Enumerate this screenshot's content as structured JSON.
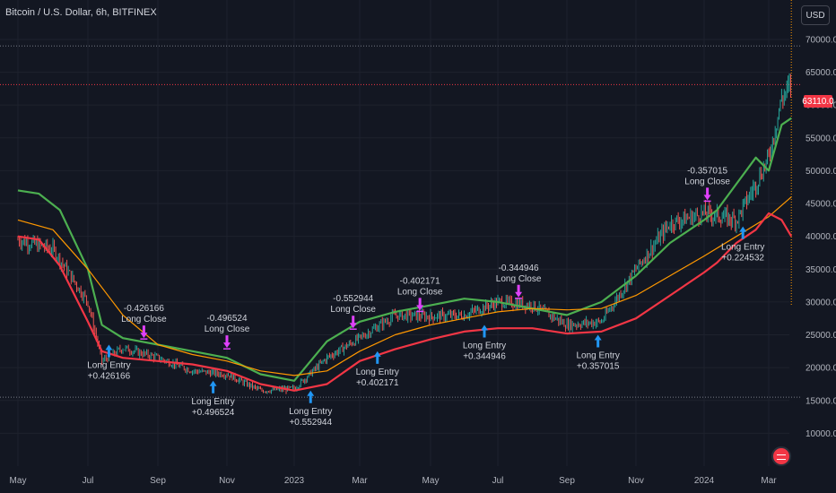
{
  "header": {
    "title": "Bitcoin / U.S. Dollar, 6h, BITFINEX",
    "currency_button": "USD"
  },
  "price_tag": "63110.0",
  "colors": {
    "background": "#131722",
    "grid": "#1e222d",
    "upper_band": "#4caf50",
    "lower_band": "#f23645",
    "ma": "#ff9800",
    "entry_arrow": "#2196f3",
    "close_arrow": "#e040fb",
    "candle_up": "#26a69a",
    "candle_down": "#ef5350"
  },
  "chart_data": {
    "type": "line",
    "x_ticks": [
      "May",
      "Jul",
      "Sep",
      "Nov",
      "2023",
      "Mar",
      "May",
      "Jul",
      "Sep",
      "Nov",
      "2024",
      "Mar"
    ],
    "y_ticks": [
      10000,
      15000,
      20000,
      25000,
      30000,
      35000,
      40000,
      45000,
      50000,
      55000,
      60000,
      65000,
      70000
    ],
    "y_tick_labels": [
      "10000.0",
      "15000.0",
      "20000.0",
      "25000.0",
      "30000.0",
      "35000.0",
      "40000.0",
      "45000.0",
      "50000.0",
      "55000.0",
      "60000.0",
      "65000.0",
      "70000.0"
    ],
    "ylim": [
      5000,
      76000
    ],
    "series": [
      {
        "color": "#4caf50",
        "x": [
          0,
          0.3,
          0.6,
          1,
          1.2,
          1.5,
          2,
          2.5,
          3,
          3.5,
          4,
          4.5,
          5,
          5.5,
          6,
          6.5,
          7,
          7.5,
          8,
          8.5,
          9,
          9.5,
          10,
          10.2,
          10.5,
          10.8,
          11,
          11.2,
          11.35
        ],
        "values": [
          47000,
          46500,
          44000,
          35000,
          26500,
          24500,
          23500,
          22500,
          21500,
          19000,
          18000,
          24000,
          27000,
          28500,
          29500,
          30500,
          30000,
          29000,
          28000,
          30000,
          34000,
          39000,
          42500,
          44000,
          48000,
          52000,
          50000,
          57000,
          58000
        ]
      },
      {
        "color": "#ff9800",
        "x": [
          0,
          0.5,
          1,
          1.5,
          2,
          2.5,
          3,
          3.5,
          4,
          4.5,
          5,
          5.5,
          6,
          6.5,
          7,
          7.5,
          8,
          8.5,
          9,
          9.5,
          10,
          10.5,
          11,
          11.35
        ],
        "values": [
          42500,
          41000,
          35000,
          28000,
          23500,
          22000,
          21000,
          19500,
          18800,
          19500,
          22500,
          25000,
          26500,
          27500,
          28500,
          29000,
          28800,
          29000,
          31000,
          34000,
          37000,
          40000,
          43000,
          46000
        ]
      },
      {
        "color": "#f23645",
        "x": [
          0,
          0.3,
          0.6,
          1,
          1.2,
          1.5,
          2,
          2.5,
          3,
          3.5,
          4,
          4.5,
          5,
          5.5,
          6,
          6.5,
          7,
          7.5,
          8,
          8.5,
          9,
          9.5,
          10,
          10.2,
          10.5,
          10.8,
          11,
          11.2,
          11.35
        ],
        "values": [
          40000,
          39500,
          35500,
          27000,
          22500,
          21500,
          21000,
          20500,
          19500,
          17500,
          16500,
          17500,
          21000,
          22800,
          24300,
          25500,
          26000,
          26000,
          25200,
          25500,
          27500,
          31000,
          34500,
          36000,
          39000,
          41000,
          43500,
          42500,
          40000
        ]
      }
    ],
    "price_candles": {
      "x": [
        0,
        0.5,
        1,
        1.2,
        1.5,
        2,
        2.5,
        3,
        3.5,
        4,
        4.5,
        5,
        5.5,
        6,
        6.5,
        7,
        7.5,
        8,
        8.5,
        9,
        9.5,
        10,
        10.5,
        10.8,
        11,
        11.2,
        11.35
      ],
      "values": [
        39500,
        38000,
        30000,
        21000,
        23000,
        21500,
        19500,
        19000,
        16500,
        16800,
        21500,
        24500,
        28000,
        27800,
        28000,
        30000,
        29500,
        26500,
        27000,
        35000,
        42000,
        43500,
        42500,
        48000,
        52000,
        61000,
        63110
      ]
    },
    "signals": [
      {
        "kind": "entry",
        "x": 1.3,
        "y": 23500,
        "label": "Long Entry",
        "value": "+0.426166"
      },
      {
        "kind": "close",
        "x": 1.8,
        "y": 24500,
        "label": "Long Close",
        "value": "-0.426166"
      },
      {
        "kind": "entry",
        "x": 2.8,
        "y": 18000,
        "label": "Long Entry",
        "value": "+0.496524"
      },
      {
        "kind": "close",
        "x": 3.0,
        "y": 23000,
        "label": "Long Close",
        "value": "-0.496524"
      },
      {
        "kind": "entry",
        "x": 4.25,
        "y": 16500,
        "label": "Long Entry",
        "value": "+0.552944"
      },
      {
        "kind": "close",
        "x": 4.9,
        "y": 26000,
        "label": "Long Close",
        "value": "-0.552944"
      },
      {
        "kind": "entry",
        "x": 5.25,
        "y": 22500,
        "label": "Long Entry",
        "value": "+0.402171"
      },
      {
        "kind": "close",
        "x": 5.85,
        "y": 28700,
        "label": "Long Close",
        "value": "-0.402171"
      },
      {
        "kind": "entry",
        "x": 6.8,
        "y": 26500,
        "label": "Long Entry",
        "value": "+0.344946"
      },
      {
        "kind": "close",
        "x": 7.3,
        "y": 30700,
        "label": "Long Close",
        "value": "-0.344946"
      },
      {
        "kind": "entry",
        "x": 8.45,
        "y": 25000,
        "label": "Long Entry",
        "value": "+0.357015"
      },
      {
        "kind": "close",
        "x": 10.05,
        "y": 45500,
        "label": "Long Close",
        "value": "-0.357015"
      },
      {
        "kind": "entry",
        "x": 10.6,
        "y": 41500,
        "label": "Long Entry",
        "value": "+0.224532"
      }
    ],
    "reference_levels": [
      69000,
      15500
    ],
    "current_price": 63110,
    "grid": true
  }
}
